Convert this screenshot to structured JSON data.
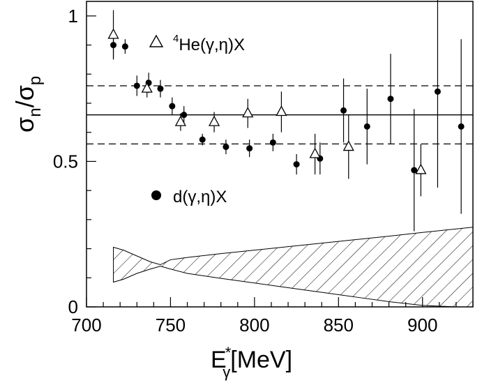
{
  "chart_data": {
    "type": "scatter",
    "title": "",
    "xlabel": {
      "main": "E",
      "sup": "*",
      "sub": "γ",
      "rest": "[MeV]"
    },
    "ylabel": {
      "a": "σ",
      "a_sub": "n",
      "slash": "/",
      "b": "σ",
      "b_sub": "p"
    },
    "xlim": [
      700,
      930
    ],
    "ylim": [
      0,
      1.05
    ],
    "x_ticks": [
      700,
      750,
      800,
      850,
      900
    ],
    "y_ticks": [
      0,
      0.5,
      1
    ],
    "x_tick_labels": [
      "700",
      "750",
      "800",
      "850",
      "900"
    ],
    "y_tick_labels": [
      "0",
      "0.5",
      "1"
    ],
    "grid": false,
    "reference_lines": [
      {
        "style": "solid",
        "y": 0.66
      },
      {
        "style": "dashed",
        "y": 0.76
      },
      {
        "style": "dashed",
        "y": 0.56
      }
    ],
    "series": [
      {
        "name": "d(γ,η)X",
        "marker": "filled-circle",
        "points": [
          {
            "x": 716,
            "y": 0.9,
            "err": 0.045
          },
          {
            "x": 723,
            "y": 0.895,
            "err": 0.025
          },
          {
            "x": 730,
            "y": 0.76,
            "err": 0.035
          },
          {
            "x": 737,
            "y": 0.77,
            "err": 0.035
          },
          {
            "x": 744,
            "y": 0.75,
            "err": 0.03
          },
          {
            "x": 751,
            "y": 0.69,
            "err": 0.03
          },
          {
            "x": 758,
            "y": 0.66,
            "err": 0.03
          },
          {
            "x": 769,
            "y": 0.575,
            "err": 0.02
          },
          {
            "x": 783,
            "y": 0.55,
            "err": 0.025
          },
          {
            "x": 797,
            "y": 0.545,
            "err": 0.03
          },
          {
            "x": 811,
            "y": 0.565,
            "err": 0.03
          },
          {
            "x": 825,
            "y": 0.49,
            "err": 0.035
          },
          {
            "x": 839,
            "y": 0.51,
            "err": 0.055
          },
          {
            "x": 853,
            "y": 0.675,
            "err": 0.11
          },
          {
            "x": 867,
            "y": 0.62,
            "err": 0.13
          },
          {
            "x": 881,
            "y": 0.715,
            "err": 0.155
          },
          {
            "x": 895,
            "y": 0.47,
            "err": 0.21
          },
          {
            "x": 909,
            "y": 0.74,
            "err": 0.33
          },
          {
            "x": 923,
            "y": 0.62,
            "err": 0.3
          }
        ]
      },
      {
        "name": "He(γ,η)X",
        "name_sup": "4",
        "marker": "open-triangle",
        "points": [
          {
            "x": 716,
            "y": 0.935,
            "err": 0.085
          },
          {
            "x": 736,
            "y": 0.75,
            "err": 0.03
          },
          {
            "x": 756,
            "y": 0.635,
            "err": 0.03
          },
          {
            "x": 776,
            "y": 0.635,
            "err": 0.035
          },
          {
            "x": 796,
            "y": 0.665,
            "err": 0.05
          },
          {
            "x": 816,
            "y": 0.67,
            "err": 0.07
          },
          {
            "x": 836,
            "y": 0.525,
            "err": 0.07
          },
          {
            "x": 856,
            "y": 0.55,
            "err": 0.11
          },
          {
            "x": 899,
            "y": 0.47,
            "err": 0.09
          }
        ]
      }
    ],
    "systematic_band": {
      "style": "hatched",
      "x": [
        716,
        722,
        730,
        738,
        744,
        750,
        760,
        780,
        800,
        820,
        840,
        860,
        880,
        900,
        920,
        930
      ],
      "upper": [
        0.205,
        0.195,
        0.175,
        0.155,
        0.145,
        0.162,
        0.17,
        0.183,
        0.195,
        0.207,
        0.219,
        0.231,
        0.243,
        0.256,
        0.268,
        0.274
      ],
      "lower": [
        0.085,
        0.095,
        0.115,
        0.13,
        0.14,
        0.13,
        0.115,
        0.098,
        0.082,
        0.066,
        0.05,
        0.034,
        0.018,
        0.005,
        0.0,
        0.0
      ]
    }
  }
}
